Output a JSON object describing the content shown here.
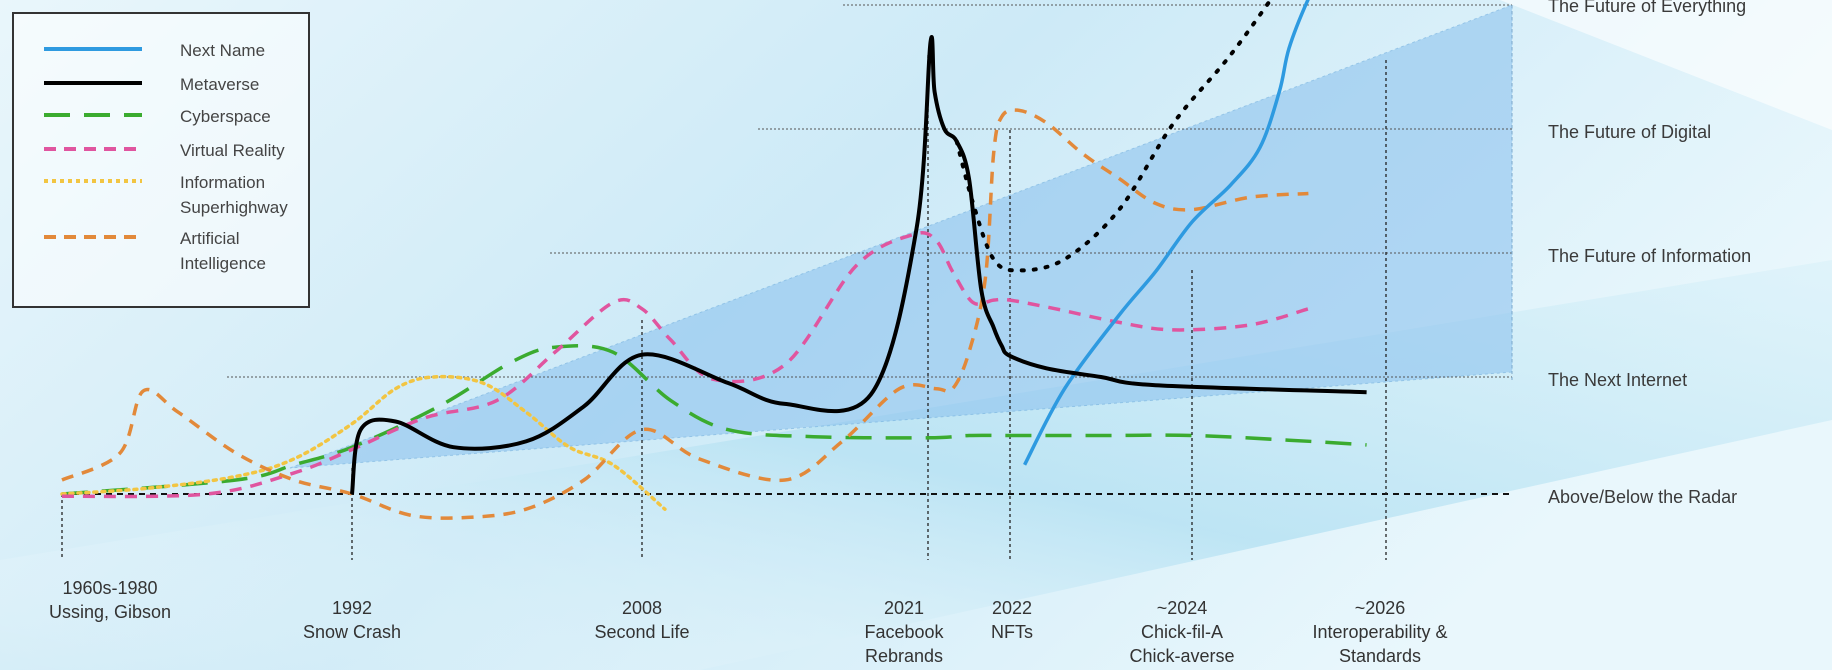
{
  "chart_data": {
    "type": "line",
    "title": "",
    "levels": [
      "Above/Below the Radar",
      "The Next Internet",
      "The Future of Information",
      "The Future of Digital",
      "The Future of Everything"
    ],
    "milestones": [
      {
        "label": "1960s-1980\nUssing, Gibson"
      },
      {
        "label": "1992\nSnow Crash"
      },
      {
        "label": "2008\nSecond Life"
      },
      {
        "label": "2021\nFacebook\nRebrands"
      },
      {
        "label": "2022\nNFTs"
      },
      {
        "label": "~2024\nChick-fil-A\nChick-averse"
      },
      {
        "label": "~2026\nInteroperability &\nStandards"
      }
    ],
    "series": [
      {
        "name": "Next Name",
        "color": "#2e9ae0",
        "style": "solid",
        "points": [
          [
            4.08,
            0.25
          ],
          [
            4.3,
            0.9
          ],
          [
            4.6,
            1.5
          ],
          [
            4.8,
            1.85
          ],
          [
            5.0,
            2.25
          ],
          [
            5.2,
            2.55
          ],
          [
            5.35,
            2.85
          ],
          [
            5.45,
            3.3
          ],
          [
            5.5,
            3.65
          ],
          [
            5.6,
            4.05
          ],
          [
            5.7,
            4.35
          ],
          [
            5.82,
            4.62
          ],
          [
            5.92,
            4.85
          ]
        ]
      },
      {
        "name": "Metaverse",
        "color": "#000000",
        "style": "solid",
        "points": [
          [
            1.0,
            0.0
          ],
          [
            1.03,
            0.55
          ],
          [
            1.15,
            0.62
          ],
          [
            1.35,
            0.4
          ],
          [
            1.6,
            0.45
          ],
          [
            1.8,
            0.75
          ],
          [
            2.0,
            1.18
          ],
          [
            2.3,
            0.95
          ],
          [
            2.5,
            0.77
          ],
          [
            2.8,
            0.85
          ],
          [
            2.96,
            2.2
          ],
          [
            3.03,
            3.7
          ],
          [
            3.08,
            3.3
          ],
          [
            3.2,
            3.0
          ],
          [
            3.35,
            2.9
          ],
          [
            3.5,
            2.6
          ],
          [
            3.65,
            1.7
          ],
          [
            3.8,
            1.4
          ],
          [
            3.9,
            1.25
          ],
          [
            4.0,
            1.17
          ],
          [
            4.2,
            1.07
          ],
          [
            4.5,
            1.0
          ],
          [
            4.8,
            0.93
          ],
          [
            5.9,
            0.87
          ]
        ]
      },
      {
        "name": "Cyberspace",
        "color": "#3bab2f",
        "style": "dash",
        "points": [
          [
            0.0,
            0.0
          ],
          [
            0.6,
            0.12
          ],
          [
            0.8,
            0.25
          ],
          [
            1.0,
            0.4
          ],
          [
            1.3,
            0.75
          ],
          [
            1.55,
            1.12
          ],
          [
            1.7,
            1.24
          ],
          [
            1.9,
            1.2
          ],
          [
            2.1,
            0.8
          ],
          [
            2.3,
            0.55
          ],
          [
            2.6,
            0.49
          ],
          [
            3.0,
            0.48
          ],
          [
            3.5,
            0.5
          ],
          [
            4.0,
            0.5
          ],
          [
            4.5,
            0.5
          ],
          [
            5.0,
            0.5
          ],
          [
            5.5,
            0.46
          ],
          [
            5.9,
            0.42
          ]
        ]
      },
      {
        "name": "Virtual Reality",
        "color": "#e0559f",
        "style": "dash",
        "points": [
          [
            0.0,
            -0.02
          ],
          [
            0.5,
            0.0
          ],
          [
            0.8,
            0.18
          ],
          [
            1.0,
            0.38
          ],
          [
            1.25,
            0.65
          ],
          [
            1.5,
            0.8
          ],
          [
            1.7,
            1.2
          ],
          [
            1.9,
            1.6
          ],
          [
            2.0,
            1.55
          ],
          [
            2.1,
            1.3
          ],
          [
            2.25,
            0.98
          ],
          [
            2.5,
            1.1
          ],
          [
            2.75,
            1.9
          ],
          [
            2.95,
            2.15
          ],
          [
            3.1,
            2.1
          ],
          [
            3.3,
            1.85
          ],
          [
            3.55,
            1.6
          ],
          [
            3.8,
            1.62
          ],
          [
            4.0,
            1.62
          ],
          [
            4.25,
            1.55
          ],
          [
            4.6,
            1.44
          ],
          [
            4.9,
            1.38
          ],
          [
            5.3,
            1.42
          ],
          [
            5.6,
            1.55
          ]
        ]
      },
      {
        "name": "Information\nSuperhighway",
        "color": "#f2c542",
        "style": "dot",
        "points": [
          [
            0.0,
            0.0
          ],
          [
            0.3,
            0.05
          ],
          [
            0.6,
            0.15
          ],
          [
            0.8,
            0.3
          ],
          [
            1.0,
            0.6
          ],
          [
            1.15,
            0.9
          ],
          [
            1.28,
            1.0
          ],
          [
            1.45,
            0.95
          ],
          [
            1.6,
            0.7
          ],
          [
            1.75,
            0.4
          ],
          [
            1.9,
            0.25
          ],
          [
            2.08,
            -0.13
          ]
        ]
      },
      {
        "name": "Artificial\nIntelligence",
        "color": "#e2893a",
        "style": "dash",
        "points": [
          [
            0.0,
            0.12
          ],
          [
            0.2,
            0.35
          ],
          [
            0.28,
            0.88
          ],
          [
            0.4,
            0.7
          ],
          [
            0.6,
            0.35
          ],
          [
            0.8,
            0.12
          ],
          [
            1.0,
            0.0
          ],
          [
            1.2,
            -0.18
          ],
          [
            1.4,
            -0.2
          ],
          [
            1.6,
            -0.13
          ],
          [
            1.8,
            0.12
          ],
          [
            2.0,
            0.55
          ],
          [
            2.2,
            0.3
          ],
          [
            2.5,
            0.12
          ],
          [
            2.7,
            0.45
          ],
          [
            2.9,
            0.9
          ],
          [
            3.1,
            0.9
          ],
          [
            3.3,
            0.9
          ],
          [
            3.5,
            1.2
          ],
          [
            3.7,
            1.8
          ],
          [
            3.8,
            2.8
          ],
          [
            3.9,
            3.1
          ],
          [
            4.05,
            3.15
          ],
          [
            4.2,
            3.05
          ],
          [
            4.4,
            2.8
          ],
          [
            4.6,
            2.6
          ],
          [
            4.8,
            2.4
          ],
          [
            5.0,
            2.35
          ],
          [
            5.3,
            2.45
          ],
          [
            5.6,
            2.48
          ]
        ]
      }
    ],
    "projection": {
      "color": "#000000",
      "style": "dot",
      "points": [
        [
          3.35,
          2.9
        ],
        [
          3.55,
          2.4
        ],
        [
          3.8,
          1.95
        ],
        [
          4.05,
          1.86
        ],
        [
          4.3,
          1.95
        ],
        [
          4.6,
          2.35
        ],
        [
          4.9,
          3.05
        ],
        [
          5.2,
          3.6
        ],
        [
          5.5,
          4.25
        ],
        [
          5.8,
          4.9
        ]
      ]
    }
  }
}
